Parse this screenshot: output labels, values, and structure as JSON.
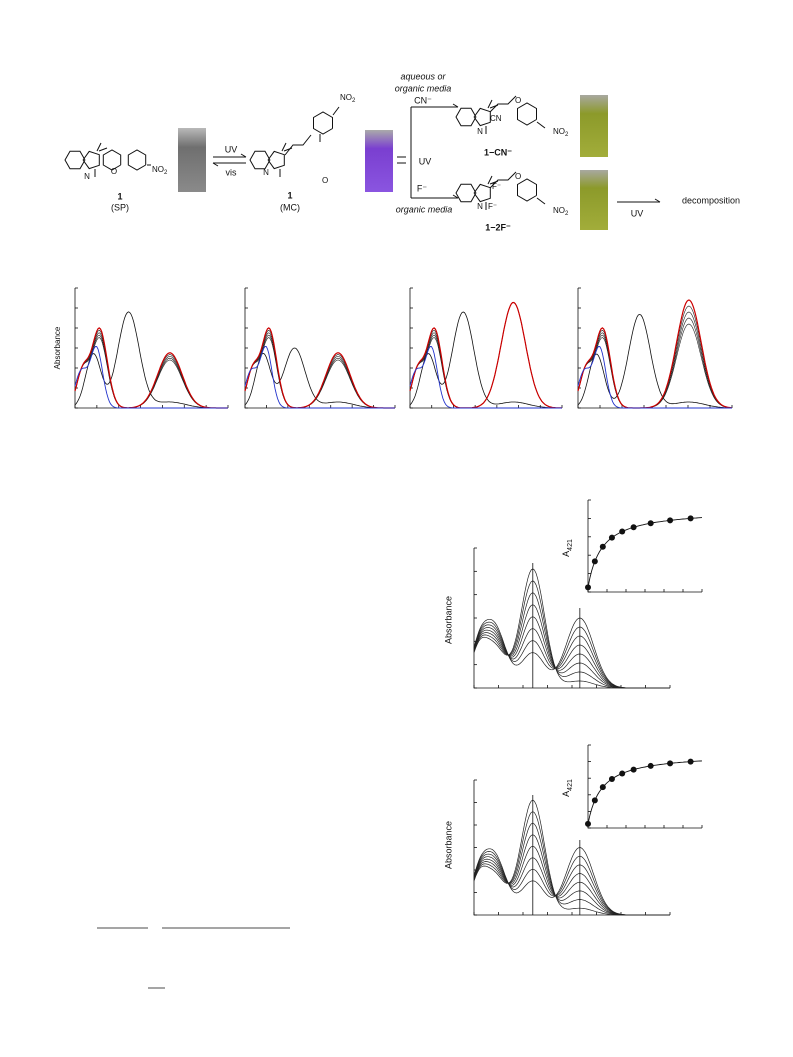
{
  "scheme": {
    "arrow_up": "UV",
    "arrow_down": "vis",
    "branch_uv": "UV",
    "sp_number": "1",
    "sp_tag": "(SP)",
    "mc_number": "1",
    "mc_tag": "(MC)",
    "nitro": {
      "main": "NO",
      "sub": "2"
    },
    "ring_n": "N",
    "ring_o": "O",
    "phenolate": "O",
    "cyano": "CN",
    "cond_top_1": "aqueous or",
    "cond_top_2": "organic media",
    "anion_top": "CN⁻",
    "anion_bottom": "F⁻",
    "cond_bottom": "organic media",
    "product_cn": "1−CN⁻",
    "product_f": "1−2F⁻",
    "fluoride": "F⁻",
    "final_uv": "UV",
    "final": "decomposition"
  },
  "figure_panels": {
    "ylabel": "Absorbance"
  },
  "figure_titration": {
    "ylabel": "Absorbance",
    "inset_ylabel": {
      "main": "A",
      "sub": "421"
    }
  }
}
